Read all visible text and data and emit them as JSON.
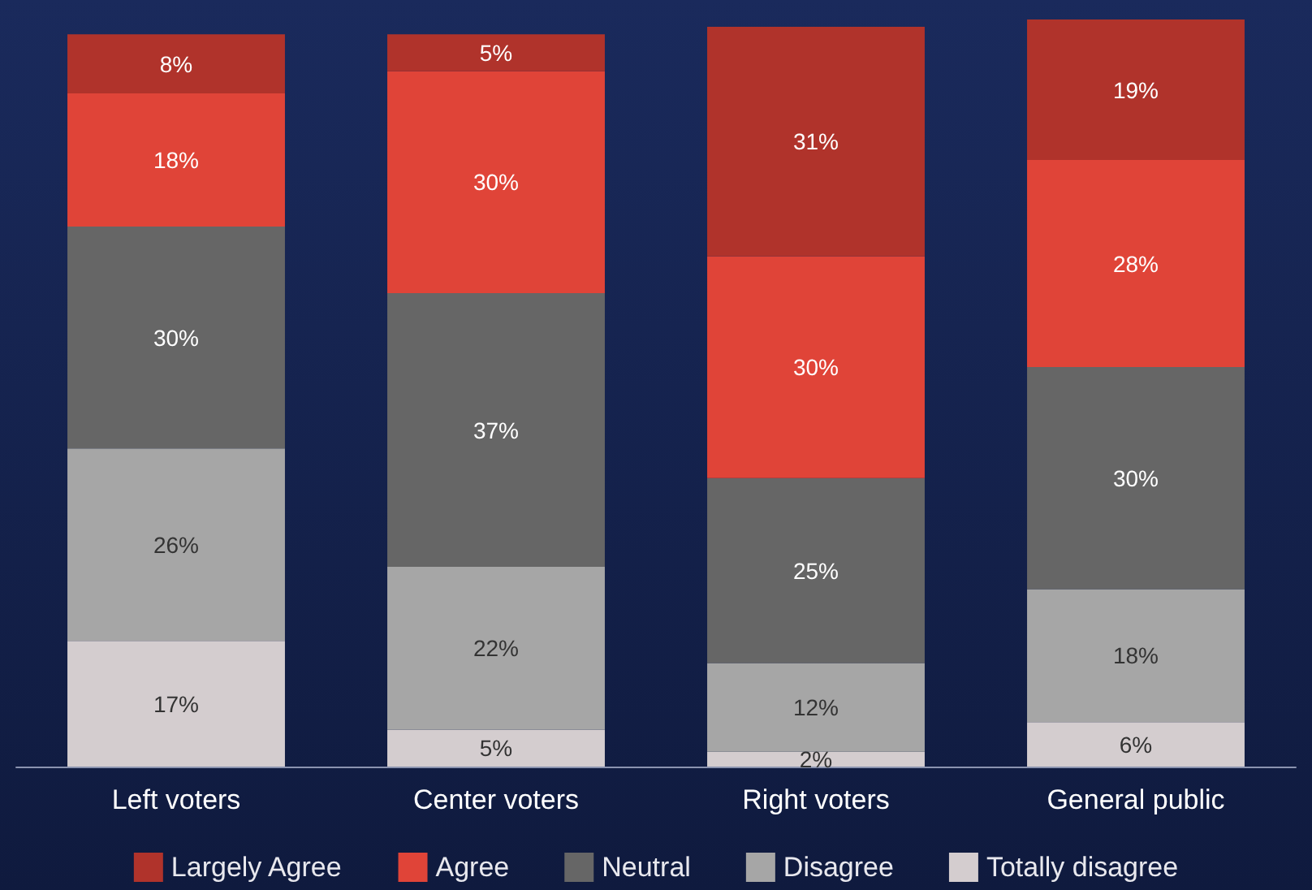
{
  "chart_data": {
    "type": "bar",
    "stacked": true,
    "legend": "bottom",
    "grid": false,
    "categories": [
      "Left voters",
      "Center voters",
      "Right voters",
      "General public"
    ],
    "series": [
      {
        "name": "Totally disagree",
        "color": "#d4cdcf",
        "values": [
          17,
          5,
          2,
          6
        ],
        "value_labels": [
          "17%",
          "5%",
          "2%",
          "6%"
        ]
      },
      {
        "name": "Disagree",
        "color": "#a6a6a6",
        "values": [
          26,
          22,
          12,
          18
        ],
        "value_labels": [
          "26%",
          "22%",
          "12%",
          "18%"
        ]
      },
      {
        "name": "Neutral",
        "color": "#666666",
        "values": [
          30,
          37,
          25,
          30
        ],
        "value_labels": [
          "30%",
          "37%",
          "25%",
          "30%"
        ]
      },
      {
        "name": "Agree",
        "color": "#e04438",
        "values": [
          18,
          30,
          30,
          28
        ],
        "value_labels": [
          "18%",
          "30%",
          "30%",
          "28%"
        ]
      },
      {
        "name": "Largely Agree",
        "color": "#b0332b",
        "values": [
          8,
          5,
          31,
          19
        ],
        "value_labels": [
          "8%",
          "5%",
          "31%",
          "19%"
        ]
      }
    ]
  }
}
